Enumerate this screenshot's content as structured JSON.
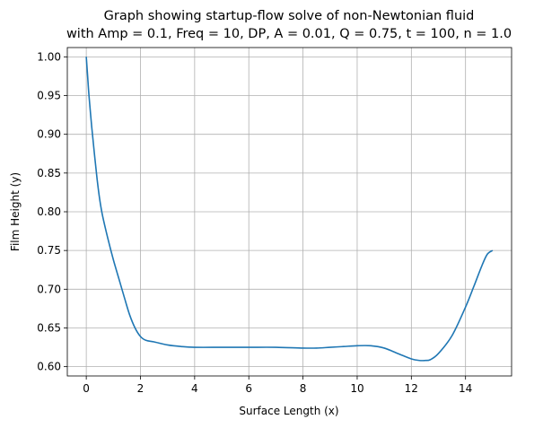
{
  "chart_data": {
    "type": "line",
    "title_line1": "Graph showing startup-flow solve of non-Newtonian fluid",
    "title_line2": "with Amp = 0.1, Freq = 10, DP, A = 0.01, Q = 0.75, t = 100, n = 1.0",
    "xlabel": "Surface Length (x)",
    "ylabel": "Film Height (y)",
    "xlim": [
      -0.7,
      15.7
    ],
    "ylim": [
      0.588,
      1.012
    ],
    "xticks": [
      0,
      2,
      4,
      6,
      8,
      10,
      12,
      14
    ],
    "xtick_labels": [
      "0",
      "2",
      "4",
      "6",
      "8",
      "10",
      "12",
      "14"
    ],
    "yticks": [
      0.6,
      0.65,
      0.7,
      0.75,
      0.8,
      0.85,
      0.9,
      0.95,
      1.0
    ],
    "ytick_labels": [
      "0.60",
      "0.65",
      "0.70",
      "0.75",
      "0.80",
      "0.85",
      "0.90",
      "0.95",
      "1.00"
    ],
    "grid": true,
    "line_color": "#1f77b4",
    "series": [
      {
        "x": [
          0.0,
          0.05,
          0.1,
          0.2,
          0.3,
          0.4,
          0.5,
          0.6,
          0.8,
          1.0,
          1.2,
          1.4,
          1.6,
          1.8,
          2.0,
          2.2,
          2.5,
          3.0,
          3.5,
          4.0,
          5.0,
          6.0,
          7.0,
          8.0,
          8.5,
          9.0,
          9.5,
          10.0,
          10.5,
          11.0,
          11.5,
          12.0,
          12.3,
          12.5,
          12.7,
          13.0,
          13.5,
          14.0,
          14.3,
          14.6,
          14.8,
          15.0
        ],
        "y": [
          1.0,
          0.975,
          0.95,
          0.91,
          0.875,
          0.842,
          0.815,
          0.795,
          0.765,
          0.738,
          0.714,
          0.69,
          0.667,
          0.65,
          0.639,
          0.634,
          0.632,
          0.628,
          0.626,
          0.625,
          0.625,
          0.625,
          0.625,
          0.624,
          0.624,
          0.625,
          0.626,
          0.627,
          0.627,
          0.624,
          0.617,
          0.61,
          0.608,
          0.608,
          0.609,
          0.617,
          0.64,
          0.677,
          0.703,
          0.73,
          0.745,
          0.75
        ]
      }
    ]
  }
}
